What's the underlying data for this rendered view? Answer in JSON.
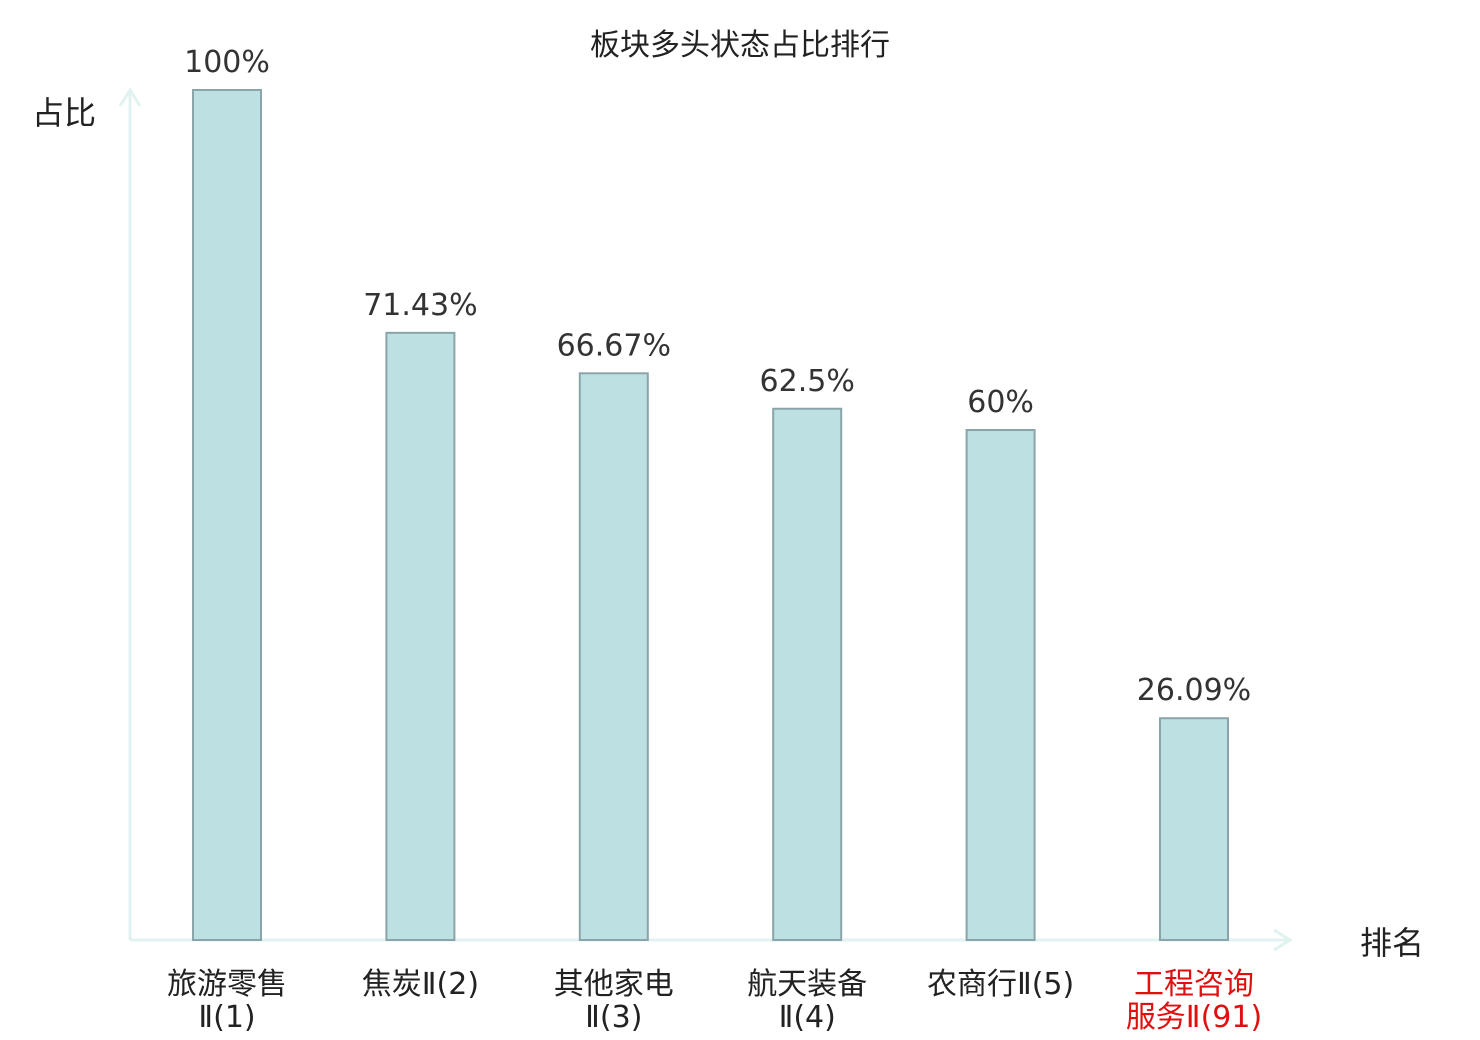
{
  "chart_data": {
    "type": "bar",
    "title": "板块多头状态占比排行",
    "xlabel": "排名",
    "ylabel": "占比",
    "ylim": [
      0,
      100
    ],
    "grid": false,
    "categories": [
      [
        "旅游零售",
        "Ⅱ(1)"
      ],
      [
        "焦炭Ⅱ(2)"
      ],
      [
        "其他家电",
        "Ⅱ(3)"
      ],
      [
        "航天装备",
        "Ⅱ(4)"
      ],
      [
        "农商行Ⅱ(5)"
      ],
      [
        "工程咨询",
        "服务Ⅱ(91)"
      ]
    ],
    "values": [
      100,
      71.43,
      66.67,
      62.5,
      60,
      26.09
    ],
    "value_labels": [
      "100%",
      "71.43%",
      "66.67%",
      "62.5%",
      "60%",
      "26.09%"
    ],
    "highlighted_category_index": 5
  },
  "colors": {
    "bar_fill": "#bde0e3",
    "bar_stroke": "#8aa5aa",
    "axis": "#e0f3f1",
    "text": "#222222",
    "highlight_text": "#e01010"
  }
}
